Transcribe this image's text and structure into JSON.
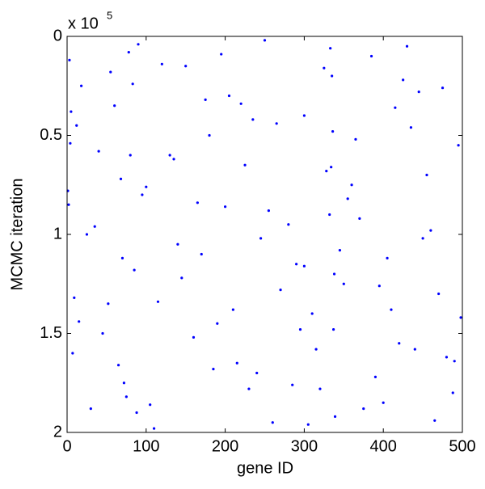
{
  "chart_data": {
    "type": "scatter",
    "x_label": "gene ID",
    "y_label": "MCMC iteration",
    "y_multiplier": {
      "base": "x 10",
      "exponent": "5"
    },
    "xlim": [
      0,
      500
    ],
    "xticks": [
      0,
      100,
      200,
      300,
      400,
      500
    ],
    "ylim": [
      0,
      200000
    ],
    "y_reversed": true,
    "yticks": [
      {
        "value": 0,
        "label": "0"
      },
      {
        "value": 50000,
        "label": "0.5"
      },
      {
        "value": 100000,
        "label": "1"
      },
      {
        "value": 150000,
        "label": "1.5"
      },
      {
        "value": 200000,
        "label": "2"
      }
    ],
    "grid": false,
    "series": [
      {
        "name": "samples",
        "color": "#0000ff",
        "x": [
          3,
          12,
          45,
          78,
          88,
          130,
          170,
          205,
          240,
          280,
          310,
          335,
          338,
          360,
          400,
          430,
          470,
          495,
          7,
          25,
          60,
          72,
          95,
          150,
          190,
          225,
          260,
          300,
          332,
          350,
          385,
          420,
          455,
          488,
          2,
          18,
          52,
          80,
          110,
          140,
          180,
          215,
          250,
          290,
          320,
          336,
          370,
          410,
          445,
          480,
          5,
          30,
          68,
          85,
          120,
          160,
          200,
          235,
          270,
          305,
          334,
          345,
          390,
          425,
          460,
          498,
          9,
          40,
          75,
          90,
          100,
          145,
          185,
          220,
          255,
          295,
          325,
          339,
          365,
          405,
          440,
          475,
          1,
          15,
          55,
          70,
          105,
          135,
          175,
          210,
          245,
          285,
          315,
          333,
          355,
          395,
          435,
          465,
          4,
          35,
          65,
          83,
          115,
          165,
          195,
          230,
          265,
          300,
          328,
          337,
          375,
          415,
          450,
          490
        ],
        "values": [
          12000,
          45000,
          150000,
          8000,
          190000,
          60000,
          110000,
          30000,
          170000,
          95000,
          140000,
          20000,
          120000,
          75000,
          185000,
          5000,
          130000,
          55000,
          160000,
          100000,
          35000,
          175000,
          80000,
          15000,
          145000,
          65000,
          195000,
          40000,
          90000,
          125000,
          10000,
          155000,
          70000,
          180000,
          85000,
          25000,
          135000,
          60000,
          198000,
          105000,
          50000,
          165000,
          2000,
          115000,
          178000,
          48000,
          92000,
          138000,
          28000,
          162000,
          38000,
          188000,
          72000,
          118000,
          14000,
          152000,
          86000,
          42000,
          128000,
          196000,
          66000,
          108000,
          172000,
          22000,
          98000,
          142000,
          132000,
          58000,
          182000,
          4000,
          76000,
          122000,
          168000,
          34000,
          88000,
          148000,
          16000,
          192000,
          52000,
          112000,
          158000,
          26000,
          78000,
          144000,
          18000,
          112000,
          186000,
          62000,
          32000,
          138000,
          102000,
          176000,
          158000,
          6000,
          82000,
          126000,
          46000,
          194000,
          54000,
          96000,
          166000,
          24000,
          134000,
          84000,
          9000,
          178000,
          44000,
          116000,
          68000,
          148000,
          188000,
          36000,
          102000,
          164000
        ]
      }
    ]
  }
}
